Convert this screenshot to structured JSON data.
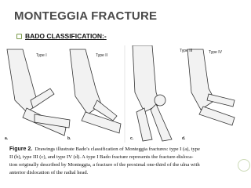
{
  "slide": {
    "title": "MONTEGGIA FRACTURE",
    "bullet": "BADO CLASSIFICATION:-",
    "figure": {
      "panels": [
        {
          "type": "Type I",
          "letter": "a."
        },
        {
          "type": "Type II",
          "letter": "b."
        },
        {
          "type": "Type III",
          "letter": "c."
        },
        {
          "type": "Type IV",
          "letter": "d."
        }
      ],
      "caption": {
        "label": "Figure 2.",
        "lines": [
          "Drawings illustrate Bado's classification of Monteggia fractures: type I (a), type",
          "II (b), type III (c), and type IV (d). A type I Bado fracture represents the fracture-disloca-",
          "tion originally described by Monteggia, a fracture of the proximal one-third of the ulna with",
          "anterior dislocation of the radial head."
        ]
      }
    }
  }
}
